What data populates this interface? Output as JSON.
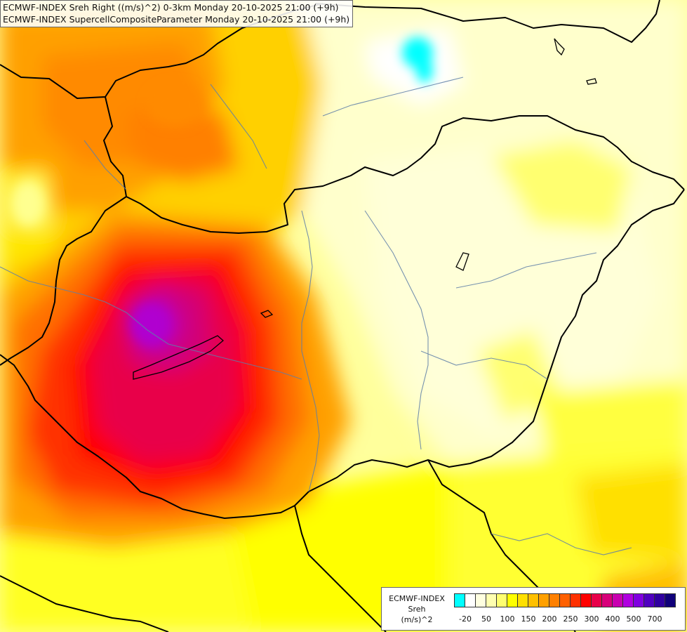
{
  "header": {
    "line1": "ECMWF-INDEX Sreh Right ((m/s)^2) 0-3km Monday 20-10-2025 21:00 (+9h)",
    "line2": "ECMWF-INDEX SupercellCompositeParameter Monday 20-10-2025 21:00 (+9h)"
  },
  "legend": {
    "model": "ECMWF-INDEX",
    "variable": "Sreh",
    "unit": "(m/s)^2",
    "colors": [
      "#00ffff",
      "#ffffff",
      "#ffffe0",
      "#ffffb0",
      "#ffff70",
      "#ffff00",
      "#ffe000",
      "#ffc000",
      "#ffa000",
      "#ff8000",
      "#ff6000",
      "#ff3000",
      "#ff0000",
      "#e8004a",
      "#d8007a",
      "#c800b0",
      "#b000e0",
      "#8000e0",
      "#5000c0",
      "#3000a0",
      "#10007a"
    ],
    "tick_labels": [
      "-20",
      "50",
      "100",
      "150",
      "200",
      "250",
      "300",
      "400",
      "500",
      "700"
    ]
  },
  "colors": {
    "ocean_background": "#ffff9c",
    "border_line": "#000000",
    "river_line": "#5f7fa8"
  }
}
